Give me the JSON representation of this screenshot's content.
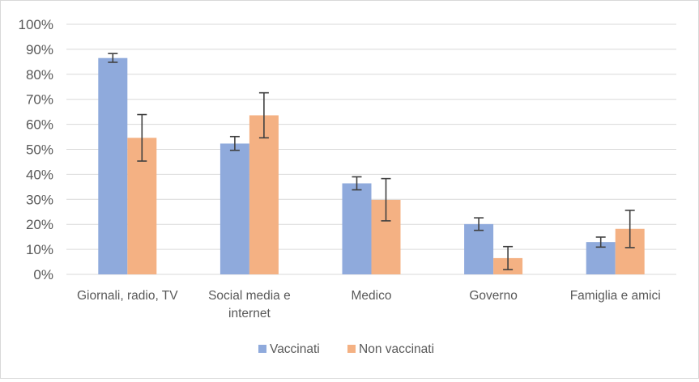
{
  "chart_data": {
    "type": "bar",
    "categories": [
      [
        "Giornali, radio, TV"
      ],
      [
        "Social media e",
        "internet"
      ],
      [
        "Medico"
      ],
      [
        "Governo"
      ],
      [
        "Famiglia e amici"
      ]
    ],
    "series": [
      {
        "name": "Vaccinati",
        "color": "#8faadc",
        "values": [
          86.5,
          52.3,
          36.4,
          20.1,
          12.9
        ],
        "error_low": [
          84.8,
          49.6,
          33.8,
          17.6,
          10.9
        ],
        "error_high": [
          88.3,
          55.1,
          39.0,
          22.6,
          14.9
        ]
      },
      {
        "name": "Non vaccinati",
        "color": "#f4b183",
        "values": [
          54.6,
          63.6,
          29.8,
          6.5,
          18.2
        ],
        "error_low": [
          45.3,
          54.6,
          21.4,
          1.9,
          10.7
        ],
        "error_high": [
          63.9,
          72.6,
          38.3,
          11.1,
          25.6
        ]
      }
    ],
    "yticks": [
      "0%",
      "10%",
      "20%",
      "30%",
      "40%",
      "50%",
      "60%",
      "70%",
      "80%",
      "90%",
      "100%"
    ],
    "ylim": [
      0,
      100
    ],
    "grid": true,
    "legend_position": "bottom",
    "title": "",
    "xlabel": "",
    "ylabel": ""
  },
  "colors": {
    "gridline": "#d9d9d9",
    "axis_text": "#595959",
    "error_bar": "#404040"
  }
}
